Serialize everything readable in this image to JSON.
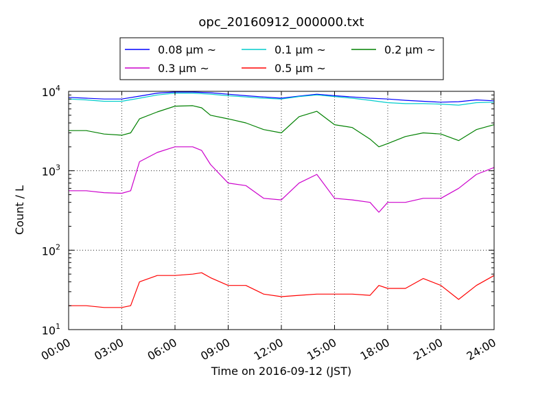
{
  "chart_data": {
    "type": "line",
    "title": "opc_20160912_000000.txt",
    "xlabel": "Time on 2016-09-12 (JST)",
    "ylabel": "Count / L",
    "xlim": [
      "00:00",
      "24:00"
    ],
    "ylim": [
      10,
      10000
    ],
    "yscale": "log",
    "grid": true,
    "legend_position": "top",
    "x_ticks": [
      "00:00",
      "03:00",
      "06:00",
      "09:00",
      "12:00",
      "15:00",
      "18:00",
      "21:00",
      "24:00"
    ],
    "y_ticks": [
      {
        "base": "10",
        "exp": "1",
        "value": 10
      },
      {
        "base": "10",
        "exp": "2",
        "value": 100
      },
      {
        "base": "10",
        "exp": "3",
        "value": 1000
      },
      {
        "base": "10",
        "exp": "4",
        "value": 10000
      }
    ],
    "series": [
      {
        "name": "0.08 μm ~",
        "color": "#0000ff",
        "x": [
          "00:00",
          "01:00",
          "02:00",
          "03:00",
          "04:00",
          "05:00",
          "06:00",
          "07:00",
          "08:00",
          "09:00",
          "10:00",
          "11:00",
          "12:00",
          "13:00",
          "14:00",
          "15:00",
          "16:00",
          "17:00",
          "18:00",
          "19:00",
          "20:00",
          "21:00",
          "22:00",
          "23:00",
          "24:00"
        ],
        "y": [
          8400,
          8200,
          8000,
          8000,
          8700,
          9500,
          9800,
          9800,
          9600,
          9200,
          8800,
          8500,
          8200,
          8700,
          9200,
          8800,
          8500,
          8200,
          8000,
          7700,
          7500,
          7300,
          7400,
          7800,
          7600
        ]
      },
      {
        "name": "0.1 μm ~",
        "color": "#00cccc",
        "x": [
          "00:00",
          "01:00",
          "02:00",
          "03:00",
          "04:00",
          "05:00",
          "06:00",
          "07:00",
          "08:00",
          "09:00",
          "10:00",
          "11:00",
          "12:00",
          "13:00",
          "14:00",
          "15:00",
          "16:00",
          "17:00",
          "18:00",
          "19:00",
          "20:00",
          "21:00",
          "22:00",
          "23:00",
          "24:00"
        ],
        "y": [
          8000,
          7800,
          7500,
          7500,
          8200,
          9000,
          9500,
          9500,
          9200,
          8800,
          8500,
          8200,
          8000,
          8600,
          9000,
          8600,
          8200,
          7700,
          7200,
          7000,
          7000,
          6900,
          6700,
          7200,
          7300
        ]
      },
      {
        "name": "0.2 μm ~",
        "color": "#008000",
        "x": [
          "00:00",
          "01:00",
          "02:00",
          "03:00",
          "03:30",
          "04:00",
          "05:00",
          "06:00",
          "07:00",
          "07:30",
          "08:00",
          "09:00",
          "10:00",
          "11:00",
          "12:00",
          "13:00",
          "14:00",
          "15:00",
          "16:00",
          "17:00",
          "17:30",
          "18:00",
          "19:00",
          "20:00",
          "21:00",
          "22:00",
          "23:00",
          "24:00"
        ],
        "y": [
          3200,
          3200,
          2900,
          2800,
          3000,
          4500,
          5500,
          6500,
          6600,
          6200,
          5000,
          4500,
          4000,
          3300,
          3000,
          4800,
          5600,
          3800,
          3500,
          2500,
          2000,
          2200,
          2700,
          3000,
          2900,
          2400,
          3300,
          3800
        ]
      },
      {
        "name": "0.3 μm ~",
        "color": "#cc00cc",
        "x": [
          "00:00",
          "01:00",
          "02:00",
          "03:00",
          "03:30",
          "04:00",
          "05:00",
          "06:00",
          "07:00",
          "07:30",
          "08:00",
          "09:00",
          "10:00",
          "11:00",
          "12:00",
          "13:00",
          "14:00",
          "15:00",
          "16:00",
          "17:00",
          "17:30",
          "18:00",
          "19:00",
          "20:00",
          "21:00",
          "22:00",
          "23:00",
          "24:00"
        ],
        "y": [
          560,
          560,
          530,
          520,
          560,
          1300,
          1700,
          2000,
          2000,
          1800,
          1200,
          700,
          650,
          450,
          430,
          700,
          900,
          450,
          430,
          400,
          300,
          400,
          400,
          450,
          450,
          600,
          900,
          1100
        ]
      },
      {
        "name": "0.5 μm ~",
        "color": "#ff0000",
        "x": [
          "00:00",
          "01:00",
          "02:00",
          "03:00",
          "03:30",
          "04:00",
          "05:00",
          "06:00",
          "07:00",
          "07:30",
          "08:00",
          "09:00",
          "10:00",
          "11:00",
          "12:00",
          "13:00",
          "14:00",
          "15:00",
          "16:00",
          "17:00",
          "17:30",
          "18:00",
          "19:00",
          "20:00",
          "21:00",
          "22:00",
          "23:00",
          "24:00"
        ],
        "y": [
          20,
          20,
          19,
          19,
          20,
          40,
          48,
          48,
          50,
          52,
          45,
          36,
          36,
          28,
          26,
          27,
          28,
          28,
          28,
          27,
          36,
          33,
          33,
          44,
          36,
          24,
          36,
          48
        ]
      }
    ]
  }
}
